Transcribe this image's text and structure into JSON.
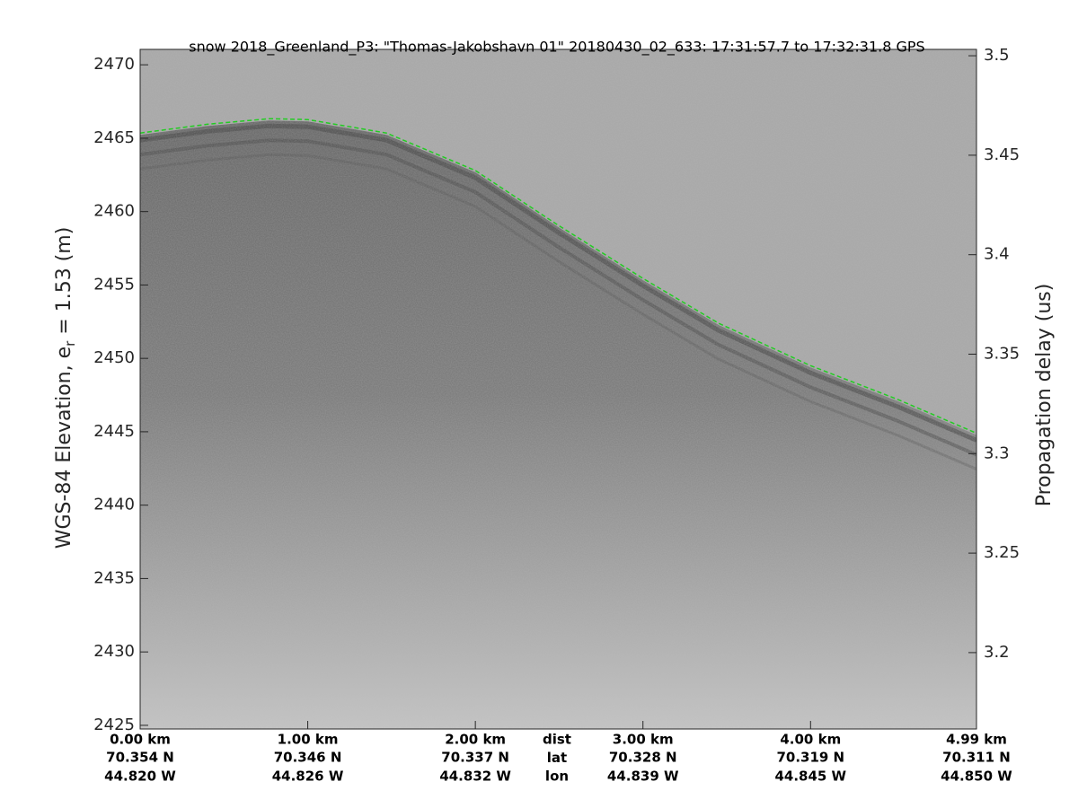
{
  "chart_data": {
    "type": "line",
    "title": "snow 2018_Greenland_P3: \"Thomas-Jakobshavn 01\"  20180430_02_633: 17:31:57.7 to 17:32:31.8 GPS",
    "ylabel": [
      "WGS-84 Elevation, e",
      "r",
      " = 1.53 (m)"
    ],
    "y2label": "Propagation delay (us)",
    "x": [
      0,
      0.4,
      0.77,
      1.0,
      1.47,
      2.0,
      2.49,
      3.0,
      3.45,
      4.0,
      4.52,
      4.99
    ],
    "series": [
      {
        "color": "#22cc22",
        "values": [
          2465.35,
          2465.95,
          2466.33,
          2466.27,
          2465.35,
          2462.8,
          2459.1,
          2455.45,
          2452.4,
          2449.5,
          2447.2,
          2444.9
        ]
      }
    ],
    "xlim": [
      0,
      4.99
    ],
    "xticks": [
      {
        "value": 0,
        "label": "0.00 km"
      },
      {
        "value": 1,
        "label": "1.00 km"
      },
      {
        "value": 2,
        "label": "2.00 km"
      },
      {
        "value": 3,
        "label": "3.00 km"
      },
      {
        "value": 4,
        "label": "4.00 km"
      },
      {
        "value": 4.99,
        "label": "4.99 km"
      }
    ],
    "xtick_lat": [
      "70.354 N",
      "70.346 N",
      "70.337 N",
      "70.328 N",
      "70.319 N",
      "70.311 N"
    ],
    "xtick_lon": [
      "44.820 W",
      "44.826 W",
      "44.832 W",
      "44.839 W",
      "44.845 W",
      "44.850 W"
    ],
    "row_labels": [
      "dist",
      "lat",
      "lon"
    ],
    "ylim": [
      2424.75,
      2471.05
    ],
    "yticks": [
      2425,
      2430,
      2435,
      2440,
      2445,
      2450,
      2455,
      2460,
      2465,
      2470
    ],
    "y2lim": [
      3.1616,
      3.5032
    ],
    "y2ticks": [
      3.2,
      3.25,
      3.3,
      3.35,
      3.4,
      3.45,
      3.5
    ]
  }
}
